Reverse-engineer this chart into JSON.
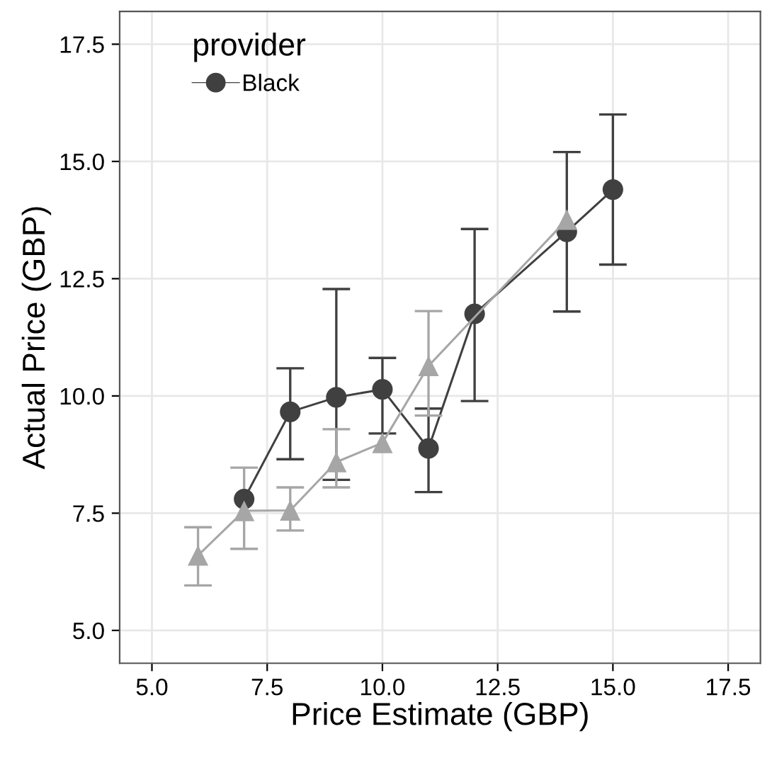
{
  "chart_data": {
    "type": "line",
    "xlabel": "Price Estimate (GBP)",
    "ylabel": "Actual Price (GBP)",
    "legend_title": "provider",
    "legend": "top left",
    "grid": true,
    "xlim": [
      4.3,
      18.2
    ],
    "xticks": [
      {
        "value": 5,
        "label": "5.0"
      },
      7.5,
      {
        "value": 10,
        "label": "10.0"
      },
      12.5,
      {
        "value": 15,
        "label": "15.0"
      },
      17.5
    ],
    "ylim": [
      4.3,
      18.2
    ],
    "yticks": [
      {
        "value": 5,
        "label": "5.0"
      },
      7.5,
      {
        "value": 10,
        "label": "10.0"
      },
      12.5,
      {
        "value": 15,
        "label": "15.0"
      },
      17.5
    ],
    "series": [
      {
        "name": "Black",
        "color": "#404040",
        "marker": "circle",
        "x": [
          7,
          8,
          9,
          10,
          11,
          12,
          14,
          15
        ],
        "values": [
          7.8,
          9.66,
          9.97,
          10.14,
          8.88,
          11.75,
          13.5,
          14.4
        ],
        "errors": [
          null,
          [
            8.65,
            10.59
          ],
          [
            8.21,
            12.28
          ],
          [
            9.2,
            10.81
          ],
          [
            7.95,
            9.73
          ],
          [
            9.89,
            13.56
          ],
          [
            11.8,
            15.2
          ],
          [
            12.8,
            16.0
          ]
        ]
      },
      {
        "color": "#a6a6a6",
        "marker": "triangle",
        "x": [
          6,
          7,
          8,
          9,
          10,
          11,
          14
        ],
        "values": [
          6.6,
          7.55,
          7.56,
          8.59,
          9.0,
          10.64,
          13.76
        ],
        "errors": [
          [
            5.96,
            7.2
          ],
          [
            6.74,
            8.47
          ],
          [
            7.13,
            8.05
          ],
          [
            8.05,
            9.29
          ],
          null,
          [
            9.58,
            11.81
          ],
          null
        ]
      }
    ]
  }
}
